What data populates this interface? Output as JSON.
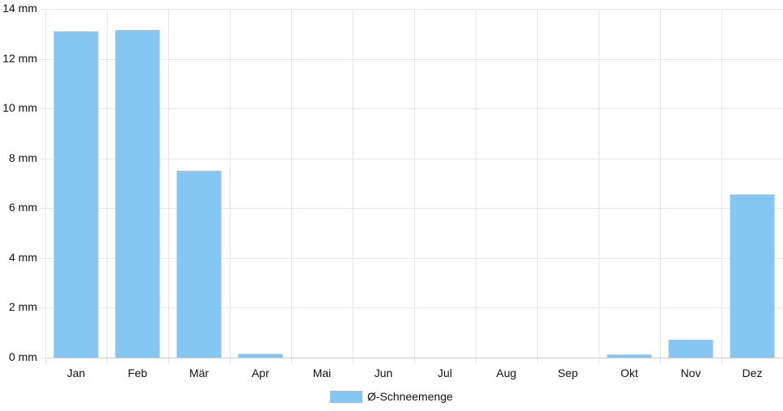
{
  "chart_data": {
    "type": "bar",
    "categories": [
      "Jan",
      "Feb",
      "Mär",
      "Apr",
      "Mai",
      "Jun",
      "Jul",
      "Aug",
      "Sep",
      "Okt",
      "Nov",
      "Dez"
    ],
    "series": [
      {
        "name": "Ø-Schneemenge",
        "values": [
          13.1,
          13.15,
          7.5,
          0.15,
          0,
          0,
          0,
          0,
          0,
          0.12,
          0.72,
          6.55
        ],
        "color": "#85c6f2"
      }
    ],
    "ylim": [
      0,
      14
    ],
    "yticks": [
      0,
      2,
      4,
      6,
      8,
      10,
      12,
      14
    ],
    "ytick_labels": [
      "0 mm",
      "2 mm",
      "4 mm",
      "6 mm",
      "8 mm",
      "10 mm",
      "12 mm",
      "14 mm"
    ],
    "grid": true,
    "legend_position": "bottom"
  }
}
